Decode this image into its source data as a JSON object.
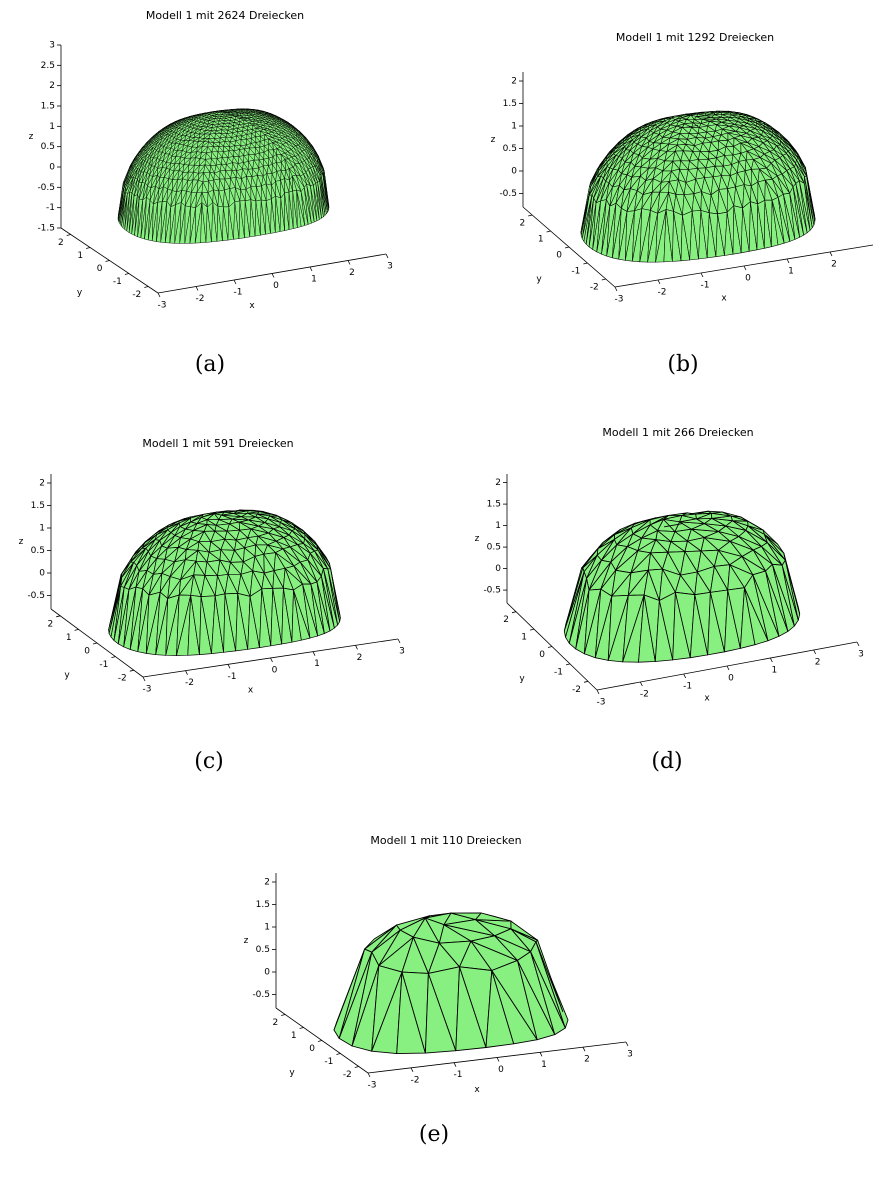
{
  "chart_data": [
    {
      "type": "surface3d",
      "title": "Modell 1 mit 2624 Dreiecken",
      "caption": "(a)",
      "xlabel": "x",
      "ylabel": "y",
      "zlabel": "z",
      "xlim": [
        -3,
        3
      ],
      "ylim": [
        -2.5,
        2.5
      ],
      "zlim": [
        -1.5,
        3
      ],
      "xticks": [
        -3,
        -2,
        -1,
        0,
        1,
        2,
        3
      ],
      "yticks": [
        -2,
        -1,
        0,
        1,
        2
      ],
      "zticks": [
        -1.5,
        -1,
        -0.5,
        0,
        0.5,
        1,
        1.5,
        2,
        2.5,
        3
      ],
      "color": "#88f080"
    },
    {
      "type": "surface3d",
      "title": "Modell 1 mit 1292 Dreiecken",
      "caption": "(b)",
      "xlabel": "x",
      "ylabel": "y",
      "zlabel": "z",
      "xlim": [
        -3,
        3
      ],
      "ylim": [
        -2.5,
        2.5
      ],
      "zlim": [
        -0.8,
        2.2
      ],
      "xticks": [
        -3,
        -2,
        -1,
        0,
        1,
        2
      ],
      "yticks": [
        -2,
        -1,
        0,
        1,
        2
      ],
      "zticks": [
        -0.5,
        0,
        0.5,
        1,
        1.5,
        2
      ],
      "color": "#88f080"
    },
    {
      "type": "surface3d",
      "title": "Modell 1 mit 591 Dreiecken",
      "caption": "(c)",
      "xlabel": "x",
      "ylabel": "y",
      "zlabel": "z",
      "xlim": [
        -3,
        3
      ],
      "ylim": [
        -2.5,
        2.5
      ],
      "zlim": [
        -0.8,
        2.2
      ],
      "xticks": [
        -3,
        -2,
        -1,
        0,
        1,
        2,
        3
      ],
      "yticks": [
        -2,
        -1,
        0,
        1,
        2
      ],
      "zticks": [
        -0.5,
        0,
        0.5,
        1,
        1.5,
        2
      ],
      "color": "#88f080"
    },
    {
      "type": "surface3d",
      "title": "Modell 1 mit 266 Dreiecken",
      "caption": "(d)",
      "xlabel": "x",
      "ylabel": "y",
      "zlabel": "z",
      "xlim": [
        -3,
        3
      ],
      "ylim": [
        -2.5,
        2.5
      ],
      "zlim": [
        -0.8,
        2.2
      ],
      "xticks": [
        -3,
        -2,
        -1,
        0,
        1,
        2,
        3
      ],
      "yticks": [
        -2,
        -1,
        0,
        1,
        2
      ],
      "zticks": [
        -0.5,
        0,
        0.5,
        1,
        1.5,
        2
      ],
      "color": "#88f080"
    },
    {
      "type": "surface3d",
      "title": "Modell 1 mit 110 Dreiecken",
      "caption": "(e)",
      "xlabel": "x",
      "ylabel": "y",
      "zlabel": "z",
      "xlim": [
        -3,
        3
      ],
      "ylim": [
        -2.5,
        2.5
      ],
      "zlim": [
        -0.8,
        2.2
      ],
      "xticks": [
        -3,
        -2,
        -1,
        0,
        1,
        2,
        3
      ],
      "yticks": [
        -2,
        -1,
        0,
        1,
        2
      ],
      "zticks": [
        -0.5,
        0,
        0.5,
        1,
        1.5,
        2
      ],
      "color": "#88f080"
    }
  ]
}
